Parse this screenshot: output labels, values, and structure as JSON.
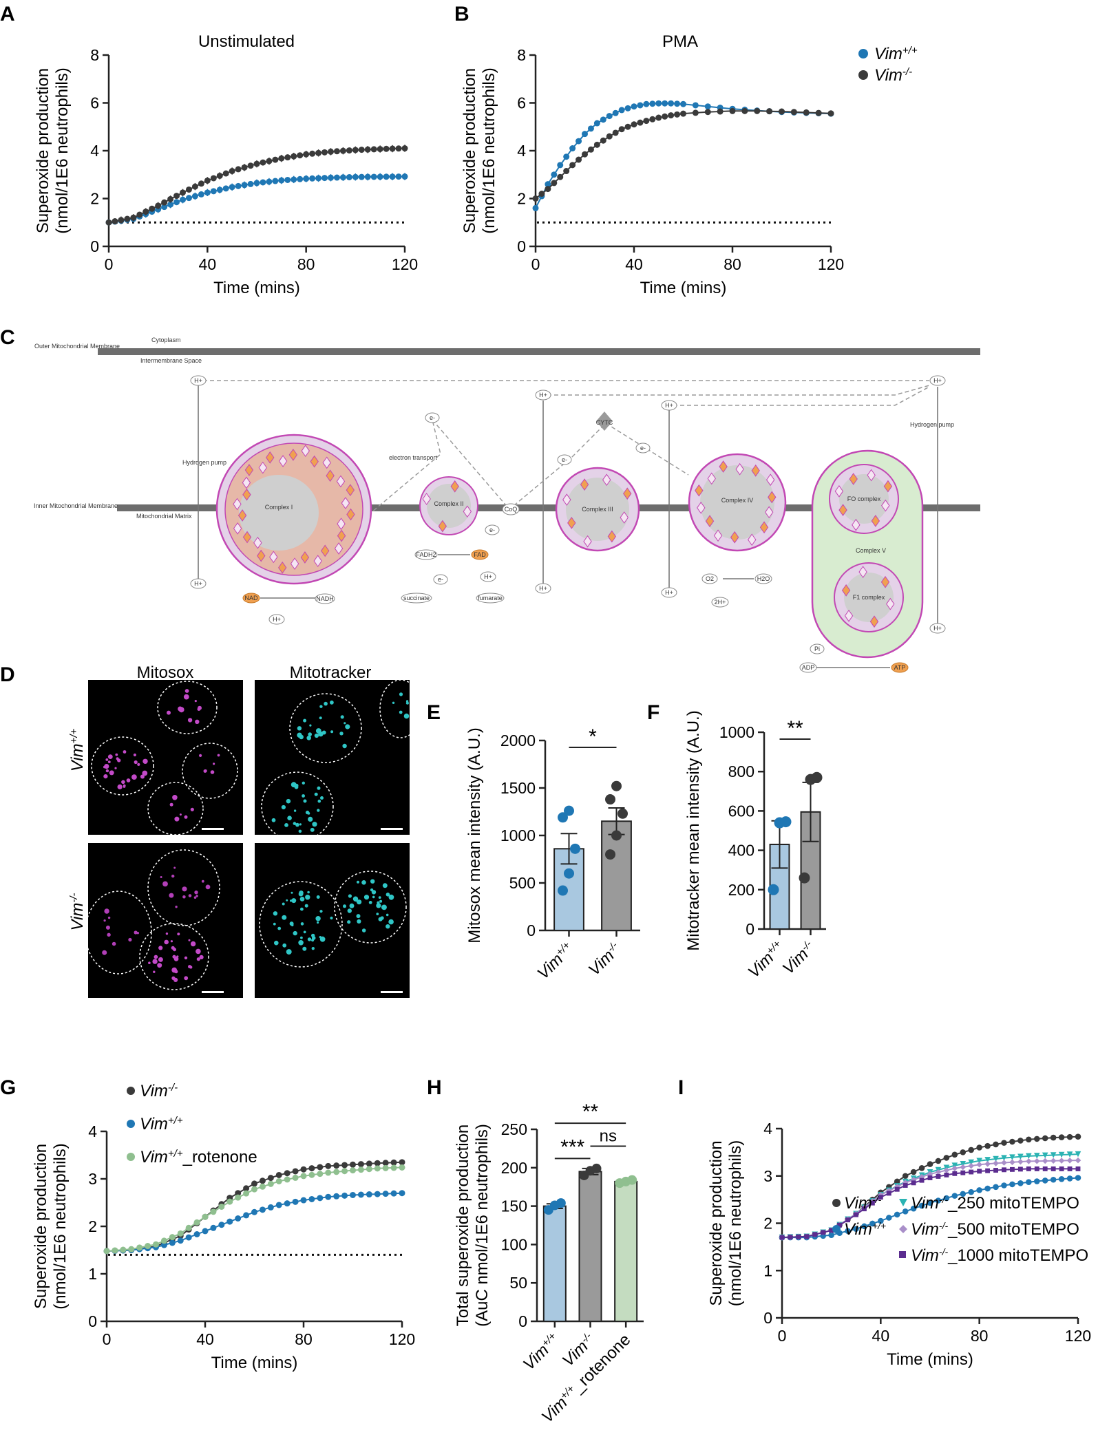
{
  "colors": {
    "vim_wt": "#1f77b4",
    "vim_ko": "#3a3a3a",
    "rotenone": "#8fbf8f",
    "m250": "#2bb3b3",
    "m500": "#a98fc9",
    "m1000": "#5b2c8f",
    "bar_wt": "#a9c8e0",
    "bar_ko": "#9a9a9a",
    "bar_rot": "#c4dcc0",
    "diagram_pink": "#c248b4",
    "diagram_orange": "#f0a050",
    "membrane": "#6d6d6d"
  },
  "panels": {
    "A": "A",
    "B": "B",
    "C": "C",
    "D": "D",
    "E": "E",
    "F": "F",
    "G": "G",
    "H": "H",
    "I": "I"
  },
  "legend_AB": [
    {
      "sup": "+/+",
      "label": "Vim"
    },
    {
      "sup": "-/-",
      "label": "Vim"
    }
  ],
  "images_D": {
    "col1": "Mitosox",
    "col2": "Mitotracker",
    "row1_base": "Vim",
    "row1_sup": "+/+",
    "row2_base": "Vim",
    "row2_sup": "-/-"
  },
  "diagram_C": {
    "outer_membrane": "Outer Mitochondrial Membrane",
    "inner_membrane": "Inner Mitochondrial Membrane",
    "cytoplasm": "Cytoplasm",
    "intermembrane": "Intermembrane Space",
    "matrix": "Mitochondrial Matrix",
    "hydrogen_pump": "Hydrogen pump",
    "electron_transport": "electron transport",
    "complex1": "Complex I",
    "complex2": "Complex II",
    "complex3": "Complex III",
    "complex4": "Complex IV",
    "complex5": "Complex V",
    "fo_complex": "FO complex",
    "f1_complex": "F1 complex",
    "hplus": "H+",
    "eminus": "e-",
    "nad": "NAD",
    "nadh": "NADH",
    "fadh2": "FADH2",
    "fad": "FAD",
    "succinate": "succinate",
    "fumarate": "fumarate",
    "coq": "CoQ",
    "cytc": "CYTC",
    "o2": "O2",
    "h2o": "H2O",
    "twoh": "2H+",
    "pi": "Pi",
    "adp": "ADP",
    "atp": "ATP"
  },
  "chart_data": [
    {
      "id": "A",
      "type": "line",
      "title": "Unstimulated",
      "xlabel": "Time (mins)",
      "ylabel": "Superoxide production (nmol/1E6 neutrophils)",
      "xlim": [
        0,
        120
      ],
      "ylim": [
        0,
        8
      ],
      "xticks": [
        0,
        40,
        80,
        120
      ],
      "yticks": [
        0,
        2,
        4,
        6,
        8
      ],
      "baseline": 1.0,
      "series": [
        {
          "name": "Vim+/+",
          "x": [
            0,
            10,
            20,
            30,
            40,
            50,
            60,
            70,
            80,
            90,
            100,
            110,
            120
          ],
          "y": [
            1.0,
            1.15,
            1.55,
            1.95,
            2.25,
            2.48,
            2.65,
            2.76,
            2.83,
            2.87,
            2.9,
            2.91,
            2.92
          ]
        },
        {
          "name": "Vim-/-",
          "x": [
            0,
            10,
            20,
            30,
            40,
            50,
            60,
            70,
            80,
            90,
            100,
            110,
            120
          ],
          "y": [
            1.0,
            1.2,
            1.7,
            2.25,
            2.75,
            3.15,
            3.45,
            3.68,
            3.85,
            3.96,
            4.03,
            4.07,
            4.1
          ]
        }
      ]
    },
    {
      "id": "B",
      "type": "line",
      "title": "PMA",
      "xlabel": "Time (mins)",
      "ylabel": "Superoxide production (nmol/1E6 neutrophils)",
      "xlim": [
        0,
        120
      ],
      "ylim": [
        0,
        8
      ],
      "xticks": [
        0,
        40,
        80,
        120
      ],
      "yticks": [
        0,
        2,
        4,
        6,
        8
      ],
      "baseline": 1.0,
      "series": [
        {
          "name": "Vim+/+",
          "x": [
            0,
            5,
            10,
            15,
            20,
            25,
            30,
            35,
            40,
            45,
            50,
            55,
            60,
            70,
            80,
            90,
            100,
            110,
            120
          ],
          "y": [
            1.6,
            2.6,
            3.4,
            4.1,
            4.7,
            5.15,
            5.45,
            5.7,
            5.85,
            5.95,
            5.98,
            5.98,
            5.95,
            5.85,
            5.75,
            5.68,
            5.62,
            5.58,
            5.55
          ]
        },
        {
          "name": "Vim-/-",
          "x": [
            0,
            5,
            10,
            15,
            20,
            25,
            30,
            35,
            40,
            45,
            50,
            55,
            60,
            70,
            80,
            90,
            100,
            110,
            120
          ],
          "y": [
            2.0,
            2.4,
            2.9,
            3.4,
            3.85,
            4.25,
            4.6,
            4.9,
            5.1,
            5.25,
            5.38,
            5.48,
            5.55,
            5.62,
            5.66,
            5.66,
            5.64,
            5.6,
            5.56
          ]
        }
      ]
    },
    {
      "id": "E",
      "type": "bar",
      "ylabel": "Mitosox mean intensity (A.U.)",
      "categories": [
        "Vim+/+",
        "Vim-/-"
      ],
      "values": [
        860,
        1150
      ],
      "sem": [
        160,
        140
      ],
      "points": [
        [
          420,
          600,
          860,
          1190,
          1260
        ],
        [
          800,
          1000,
          1230,
          1380,
          1520
        ]
      ],
      "ylim": [
        0,
        2000
      ],
      "yticks": [
        0,
        500,
        1000,
        1500,
        2000
      ],
      "sig": "*"
    },
    {
      "id": "F",
      "type": "bar",
      "ylabel": "Mitotracker mean intensity (A.U.)",
      "categories": [
        "Vim+/+",
        "Vim-/-"
      ],
      "values": [
        430,
        595
      ],
      "sem": [
        120,
        150
      ],
      "points": [
        [
          200,
          540,
          545
        ],
        [
          260,
          760,
          770
        ]
      ],
      "ylim": [
        0,
        1000
      ],
      "yticks": [
        0,
        200,
        400,
        600,
        800,
        1000
      ],
      "sig": "**"
    },
    {
      "id": "G",
      "type": "line",
      "xlabel": "Time (mins)",
      "ylabel": "Superoxide production (nmol/1E6 neutrophils)",
      "xlim": [
        0,
        120
      ],
      "ylim": [
        0,
        4
      ],
      "xticks": [
        0,
        40,
        80,
        120
      ],
      "yticks": [
        0,
        1,
        2,
        3,
        4
      ],
      "baseline": 1.4,
      "legend": [
        "Vim-/-",
        "Vim+/+",
        "Vim+/+_rotenone"
      ],
      "series": [
        {
          "name": "Vim-/-",
          "x": [
            0,
            10,
            20,
            30,
            40,
            50,
            60,
            70,
            80,
            90,
            100,
            110,
            120
          ],
          "y": [
            1.48,
            1.5,
            1.58,
            1.8,
            2.2,
            2.6,
            2.9,
            3.08,
            3.2,
            3.27,
            3.3,
            3.33,
            3.35
          ]
        },
        {
          "name": "Vim+/+",
          "x": [
            0,
            10,
            20,
            30,
            40,
            50,
            60,
            70,
            80,
            90,
            100,
            110,
            120
          ],
          "y": [
            1.48,
            1.5,
            1.56,
            1.7,
            1.9,
            2.1,
            2.3,
            2.45,
            2.55,
            2.62,
            2.66,
            2.68,
            2.7
          ]
        },
        {
          "name": "Vim+/+_rotenone",
          "x": [
            0,
            10,
            20,
            30,
            40,
            50,
            60,
            70,
            80,
            90,
            100,
            110,
            120
          ],
          "y": [
            1.48,
            1.52,
            1.62,
            1.85,
            2.2,
            2.52,
            2.78,
            2.95,
            3.06,
            3.13,
            3.18,
            3.22,
            3.24
          ]
        }
      ]
    },
    {
      "id": "H",
      "type": "bar",
      "ylabel": "Total superoxide production (AuC nmol/1E6 neutrophils)",
      "categories": [
        "Vim+/+",
        "Vim-/-",
        "Vim+/+_rotenone"
      ],
      "values": [
        150,
        195,
        182
      ],
      "sem": [
        3,
        4,
        2
      ],
      "points": [
        [
          145,
          151,
          154
        ],
        [
          190,
          196,
          199
        ],
        [
          180,
          182,
          184
        ]
      ],
      "ylim": [
        0,
        250
      ],
      "yticks": [
        0,
        50,
        100,
        150,
        200,
        250
      ],
      "sig": [
        {
          "pair": [
            0,
            1
          ],
          "label": "***"
        },
        {
          "pair": [
            1,
            2
          ],
          "label": "ns"
        },
        {
          "pair": [
            0,
            2
          ],
          "label": "**"
        }
      ]
    },
    {
      "id": "I",
      "type": "line",
      "xlabel": "Time (mins)",
      "ylabel": "Superoxide production (nmol/1E6 neutrophils)",
      "xlim": [
        0,
        120
      ],
      "ylim": [
        0,
        4
      ],
      "xticks": [
        0,
        40,
        80,
        120
      ],
      "yticks": [
        0,
        1,
        2,
        3,
        4
      ],
      "legend": [
        "Vim-/-",
        "Vim-/-_250 mitoTEMPO",
        "Vim+/+",
        "Vim-/-_500 mitoTEMPO",
        "Vim-/-_1000 mitoTEMPO"
      ],
      "series": [
        {
          "name": "Vim-/-",
          "x": [
            0,
            10,
            20,
            30,
            40,
            50,
            60,
            70,
            80,
            90,
            100,
            110,
            120
          ],
          "y": [
            1.7,
            1.72,
            1.85,
            2.2,
            2.65,
            3.0,
            3.25,
            3.45,
            3.6,
            3.7,
            3.77,
            3.81,
            3.83
          ]
        },
        {
          "name": "Vim+/+",
          "x": [
            0,
            10,
            20,
            30,
            40,
            50,
            60,
            70,
            80,
            90,
            100,
            110,
            120
          ],
          "y": [
            1.7,
            1.7,
            1.75,
            1.88,
            2.05,
            2.25,
            2.43,
            2.58,
            2.7,
            2.8,
            2.87,
            2.92,
            2.96
          ]
        },
        {
          "name": "Vim-/-_250 mitoTEMPO",
          "x": [
            0,
            10,
            20,
            30,
            40,
            50,
            60,
            70,
            80,
            90,
            100,
            110,
            120
          ],
          "y": [
            1.7,
            1.72,
            1.85,
            2.2,
            2.6,
            2.88,
            3.08,
            3.22,
            3.32,
            3.38,
            3.42,
            3.44,
            3.46
          ]
        },
        {
          "name": "Vim-/-_500 mitoTEMPO",
          "x": [
            0,
            10,
            20,
            30,
            40,
            50,
            60,
            70,
            80,
            90,
            100,
            110,
            120
          ],
          "y": [
            1.7,
            1.72,
            1.85,
            2.2,
            2.6,
            2.86,
            3.04,
            3.16,
            3.24,
            3.28,
            3.31,
            3.32,
            3.33
          ]
        },
        {
          "name": "Vim-/-_1000 mitoTEMPO",
          "x": [
            0,
            10,
            20,
            30,
            40,
            50,
            60,
            70,
            80,
            90,
            100,
            110,
            120
          ],
          "y": [
            1.7,
            1.72,
            1.85,
            2.18,
            2.55,
            2.8,
            2.96,
            3.05,
            3.1,
            3.13,
            3.15,
            3.15,
            3.15
          ]
        }
      ]
    }
  ]
}
